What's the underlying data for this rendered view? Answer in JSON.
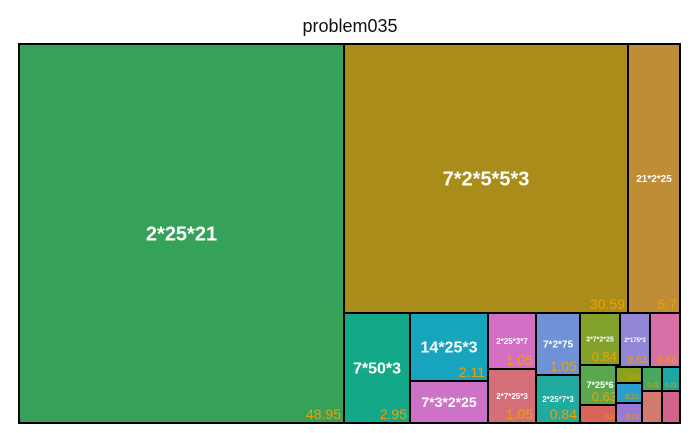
{
  "chart_data": {
    "type": "treemap",
    "title": "problem035",
    "label_color": "#f0a000",
    "tiles": [
      {
        "label": "2*25*21",
        "value": 48.95,
        "value_label": "48.95",
        "color": "#36a158"
      },
      {
        "label": "7*2*5*5*3",
        "value": 30.59,
        "value_label": "30.59",
        "color": "#a98c1a"
      },
      {
        "label": "21*2*25",
        "value": 5.7,
        "value_label": "5.7",
        "color": "#bf8c37"
      },
      {
        "label": "7*50*3",
        "value": 2.95,
        "value_label": "2.95",
        "color": "#13a888"
      },
      {
        "label": "14*25*3",
        "value": 2.11,
        "value_label": "2.11",
        "color": "#17a4bd"
      },
      {
        "label": "7*3*2*25",
        "value": 1.05,
        "value_label": "",
        "color": "#cd72c7"
      },
      {
        "label": "2*25*3*7",
        "value": 1.05,
        "value_label": "1.05",
        "color": "#d46fc6"
      },
      {
        "label": "2*7*25*3",
        "value": 1.05,
        "value_label": "1.05",
        "color": "#d46f7a"
      },
      {
        "label": "7*2*75",
        "value": 1.05,
        "value_label": "1.05",
        "color": "#6f91d6"
      },
      {
        "label": "2*25*7*3",
        "value": 0.84,
        "value_label": "0.84",
        "color": "#21aa9f"
      },
      {
        "label": "3*7*2*25",
        "value": 0.84,
        "value_label": "0.84",
        "color": "#82a22c"
      },
      {
        "label": "7*25*6",
        "value": 0.63,
        "value_label": "0.63",
        "color": "#5aa74f"
      },
      {
        "label": "2*175*3",
        "value": 0.63,
        "value_label": "0.63",
        "color": "#9287d6"
      },
      {
        "label": "",
        "value": 0.63,
        "value_label": "0.63",
        "color": "#d96fa8"
      },
      {
        "label": "",
        "value": 0.21,
        "value_label": "0.21",
        "color": "#d8645a"
      },
      {
        "label": "",
        "value": 0.21,
        "value_label": "0.21",
        "color": "#88a21f"
      },
      {
        "label": "",
        "value": 0.21,
        "value_label": "0.21",
        "color": "#2a9fcf"
      },
      {
        "label": "",
        "value": 0.21,
        "value_label": "0.21",
        "color": "#9b79d6"
      },
      {
        "label": "",
        "value": 0.21,
        "value_label": "0.21",
        "color": "#47a85e"
      },
      {
        "label": "",
        "value": 0.21,
        "value_label": "0.21",
        "color": "#19a9a2"
      },
      {
        "label": "",
        "value": 0.21,
        "value_label": "",
        "color": "#d47a6e"
      },
      {
        "label": "",
        "value": 0.21,
        "value_label": "",
        "color": "#d0628c"
      }
    ]
  }
}
